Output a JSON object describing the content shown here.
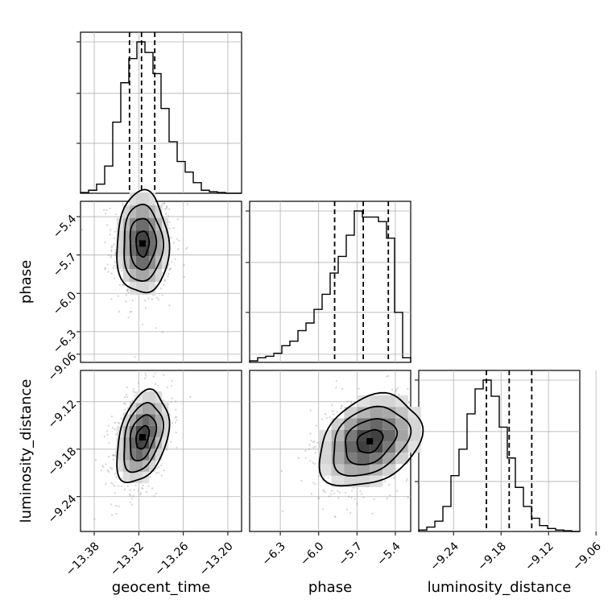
{
  "chart_data": {
    "type": "corner",
    "parameters": [
      "geocent_time",
      "phase",
      "luminosity_distance"
    ],
    "axis_labels": {
      "geocent_time": "geocent_time",
      "phase": "phase",
      "luminosity_distance": "luminosity_distance"
    },
    "ranges": {
      "geocent_time": [
        -13.3985,
        -13.1815
      ],
      "phase": [
        -6.54,
        -5.28
      ],
      "luminosity_distance": [
        -9.284,
        -9.0805
      ]
    },
    "ticks": {
      "geocent_time": {
        "values": [
          -13.38,
          -13.32,
          -13.26,
          -13.2
        ],
        "labels": [
          "−13.38",
          "−13.32",
          "−13.26",
          "−13.20"
        ]
      },
      "phase": {
        "values": [
          -6.3,
          -6.0,
          -5.7,
          -5.4
        ],
        "labels": [
          "−6.3",
          "−6.0",
          "−5.7",
          "−5.4"
        ]
      },
      "luminosity_distance": {
        "values": [
          -9.24,
          -9.18,
          -9.12,
          -9.06
        ],
        "labels": [
          "−9.24",
          "−9.18",
          "−9.12",
          "−9.06"
        ]
      }
    },
    "quantiles": {
      "geocent_time": [
        -13.3325,
        -13.3163,
        -13.2985
      ],
      "phase": [
        -5.875,
        -5.651,
        -5.455
      ],
      "luminosity_distance": [
        -9.1985,
        -9.1697,
        -9.1412
      ]
    },
    "histograms": {
      "geocent_time": [
        0.005,
        0.02,
        0.06,
        0.18,
        0.47,
        0.73,
        0.89,
        1.0,
        0.93,
        0.79,
        0.56,
        0.34,
        0.21,
        0.14,
        0.07,
        0.02,
        0.01,
        0.005,
        0.0,
        0.0
      ],
      "phase": [
        0.01,
        0.03,
        0.04,
        0.06,
        0.11,
        0.14,
        0.21,
        0.26,
        0.35,
        0.45,
        0.59,
        0.7,
        0.84,
        1.0,
        0.96,
        0.96,
        0.93,
        0.82,
        0.33,
        0.03
      ],
      "luminosity_distance": [
        0.01,
        0.03,
        0.07,
        0.17,
        0.38,
        0.56,
        0.8,
        0.97,
        1.03,
        0.92,
        0.71,
        0.5,
        0.3,
        0.17,
        0.09,
        0.04,
        0.02,
        0.01,
        0.005,
        0.0
      ]
    },
    "pairs": [
      {
        "x": "geocent_time",
        "y": "phase",
        "center": [
          -13.315,
          -5.61
        ],
        "sigma": [
          0.0175,
          0.2
        ],
        "rho": 0.0
      },
      {
        "x": "geocent_time",
        "y": "luminosity_distance",
        "center": [
          -13.315,
          -9.165
        ],
        "sigma": [
          0.0175,
          0.029
        ],
        "rho": 0.35
      },
      {
        "x": "phase",
        "y": "luminosity_distance",
        "center": [
          -5.6,
          -9.17
        ],
        "sigma": [
          0.2,
          0.029
        ],
        "rho": 0.3
      }
    ],
    "contour_levels": [
      "0.5",
      "1.0",
      "1.5",
      "2.0"
    ],
    "grid": true,
    "colors": {
      "line": "#000000",
      "grid": "#b0b0b0",
      "points": "#808080"
    }
  }
}
